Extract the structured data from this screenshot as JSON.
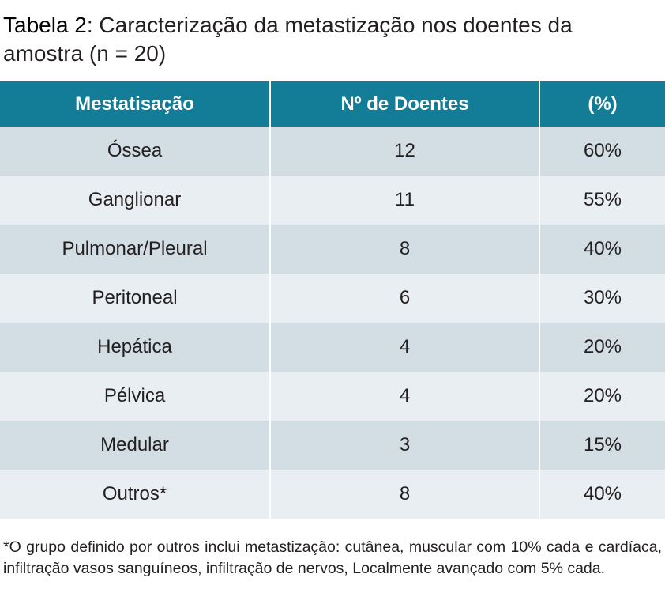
{
  "title": {
    "label": "Tabela 2",
    "text": ": Caracterização da metastização nos doentes da amostra (n = 20)"
  },
  "table": {
    "header": [
      "Mestatisação",
      "Nº de Doentes",
      "(%)"
    ],
    "rows": [
      [
        "Óssea",
        "12",
        "60%"
      ],
      [
        "Ganglionar",
        "11",
        "55%"
      ],
      [
        "Pulmonar/Pleural",
        "8",
        "40%"
      ],
      [
        "Peritoneal",
        "6",
        "30%"
      ],
      [
        "Hepática",
        "4",
        "20%"
      ],
      [
        "Pélvica",
        "4",
        "20%"
      ],
      [
        "Medular",
        "3",
        "15%"
      ],
      [
        "Outros*",
        "8",
        "40%"
      ]
    ]
  },
  "footnote": "*O grupo definido por outros inclui metastização: cutânea, muscular com 10% cada e cardíaca, infiltração vasos sanguíneos, infiltração de nervos, Localmente avançado com 5% cada."
}
